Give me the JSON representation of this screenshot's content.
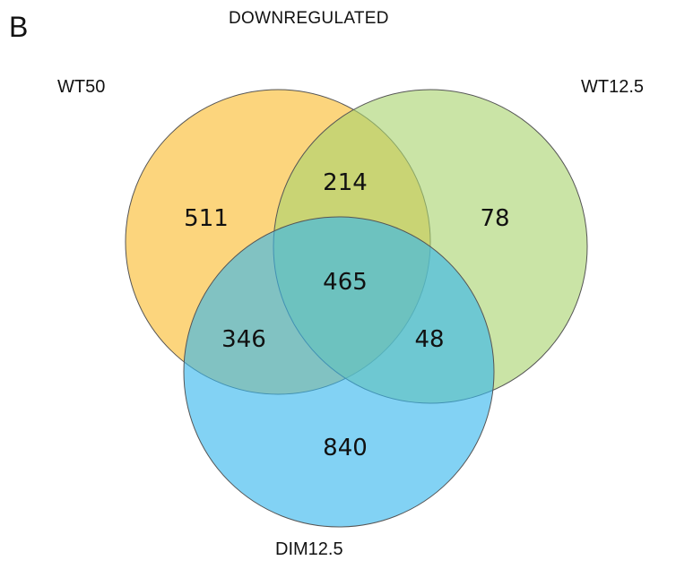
{
  "panel_letter": "B",
  "title": "DOWNREGULATED",
  "sets": [
    {
      "name": "WT50",
      "color": "#FBC54B"
    },
    {
      "name": "WT12.5",
      "color": "#A9D46F"
    },
    {
      "name": "DIM12.5",
      "color": "#35B6EE"
    }
  ],
  "regions": {
    "wt50_only": "511",
    "wt125_only": "78",
    "dim125_only": "840",
    "wt50_wt125": "214",
    "wt50_dim125": "346",
    "wt125_dim125": "48",
    "all_three": "465"
  }
}
